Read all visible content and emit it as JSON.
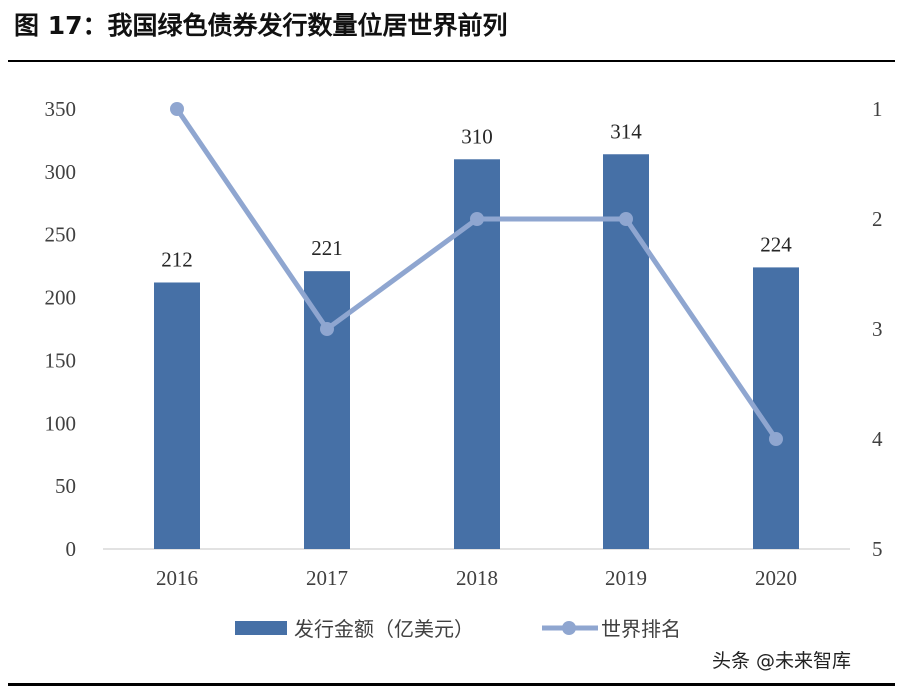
{
  "figure": {
    "title": "图 17：我国绿色债券发行数量位居世界前列",
    "watermark": "头条 @未来智库"
  },
  "colors": {
    "bar": "#4670A6",
    "line": "#8FA6D0",
    "axis": "#D9D9D9",
    "tick_text": "#404040"
  },
  "chart_data": {
    "type": "bar+line",
    "title": "图 17：我国绿色债券发行数量位居世界前列",
    "categories": [
      "2016",
      "2017",
      "2018",
      "2019",
      "2020"
    ],
    "series": [
      {
        "name": "发行金额（亿美元）",
        "type": "bar",
        "axis": "left",
        "values": [
          212,
          221,
          310,
          314,
          224
        ],
        "data_labels": [
          "212",
          "221",
          "310",
          "314",
          "224"
        ]
      },
      {
        "name": "世界排名",
        "type": "line",
        "axis": "right",
        "values": [
          1,
          3,
          2,
          2,
          4
        ]
      }
    ],
    "y_left": {
      "ylim": [
        0,
        350
      ],
      "ticks": [
        "0",
        "50",
        "100",
        "150",
        "200",
        "250",
        "300",
        "350"
      ]
    },
    "y_right": {
      "ylim": [
        1,
        5
      ],
      "inverted": true,
      "ticks": [
        "1",
        "2",
        "3",
        "4",
        "5"
      ]
    },
    "xlabel": "",
    "ylabel": "",
    "grid": false,
    "legend_position": "bottom"
  },
  "legend": {
    "items": [
      {
        "label": "发行金额（亿美元）",
        "type": "bar"
      },
      {
        "label": "世界排名",
        "type": "line"
      }
    ]
  }
}
